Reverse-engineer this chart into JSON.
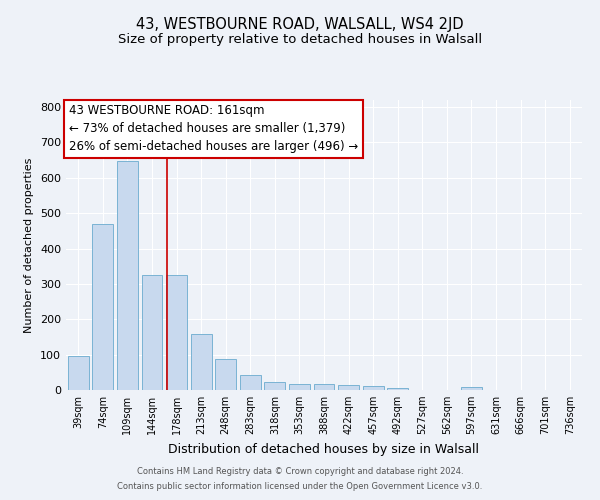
{
  "title": "43, WESTBOURNE ROAD, WALSALL, WS4 2JD",
  "subtitle": "Size of property relative to detached houses in Walsall",
  "xlabel": "Distribution of detached houses by size in Walsall",
  "ylabel": "Number of detached properties",
  "footer_line1": "Contains HM Land Registry data © Crown copyright and database right 2024.",
  "footer_line2": "Contains public sector information licensed under the Open Government Licence v3.0.",
  "categories": [
    "39sqm",
    "74sqm",
    "109sqm",
    "144sqm",
    "178sqm",
    "213sqm",
    "248sqm",
    "283sqm",
    "318sqm",
    "353sqm",
    "388sqm",
    "422sqm",
    "457sqm",
    "492sqm",
    "527sqm",
    "562sqm",
    "597sqm",
    "631sqm",
    "666sqm",
    "701sqm",
    "736sqm"
  ],
  "values": [
    95,
    470,
    648,
    325,
    325,
    157,
    87,
    42,
    24,
    17,
    16,
    14,
    11,
    7,
    0,
    0,
    8,
    0,
    0,
    0,
    0
  ],
  "bar_color": "#c8d9ee",
  "bar_edge_color": "#7ab3d4",
  "annotation_line1": "43 WESTBOURNE ROAD: 161sqm",
  "annotation_line2": "← 73% of detached houses are smaller (1,379)",
  "annotation_line3": "26% of semi-detached houses are larger (496) →",
  "annotation_box_color": "#ffffff",
  "annotation_box_edge_color": "#cc0000",
  "vline_x_index": 3.62,
  "ylim": [
    0,
    820
  ],
  "yticks": [
    0,
    100,
    200,
    300,
    400,
    500,
    600,
    700,
    800
  ],
  "background_color": "#eef2f8",
  "grid_color": "#ffffff",
  "title_fontsize": 10.5,
  "subtitle_fontsize": 9.5,
  "ylabel_fontsize": 8,
  "xlabel_fontsize": 9,
  "tick_fontsize": 8,
  "xtick_fontsize": 7
}
